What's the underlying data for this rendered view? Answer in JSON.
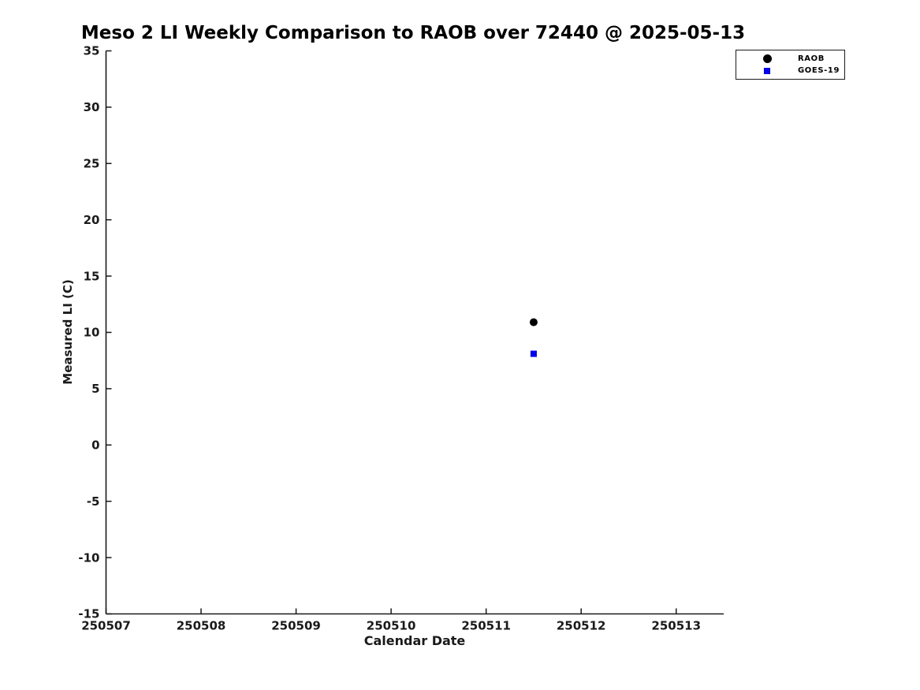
{
  "page": {
    "background_color": "#ffffff",
    "axis_color": "#1a1a1a",
    "title_color": "#000000"
  },
  "chart_data": {
    "type": "scatter",
    "title": "Meso 2 LI Weekly Comparison to RAOB over 72440 @ 2025-05-13",
    "xlabel": "Calendar Date",
    "ylabel": "Measured LI (C)",
    "xlim": [
      250507,
      250513.5
    ],
    "ylim": [
      -15,
      35
    ],
    "xticks": [
      250507,
      250508,
      250509,
      250510,
      250511,
      250512,
      250513
    ],
    "yticks": [
      -15,
      -10,
      -5,
      0,
      5,
      10,
      15,
      20,
      25,
      30,
      35
    ],
    "grid": false,
    "legend_position": "top-right-outside",
    "series": [
      {
        "name": "RAOB",
        "marker": "circle",
        "color": "#000000",
        "marker_size": 10,
        "points": [
          {
            "x": 250511.5,
            "y": 10.9
          }
        ]
      },
      {
        "name": "GOES-19",
        "marker": "square",
        "color": "#0000ff",
        "marker_size": 8,
        "points": [
          {
            "x": 250511.5,
            "y": 8.1
          }
        ]
      }
    ]
  }
}
